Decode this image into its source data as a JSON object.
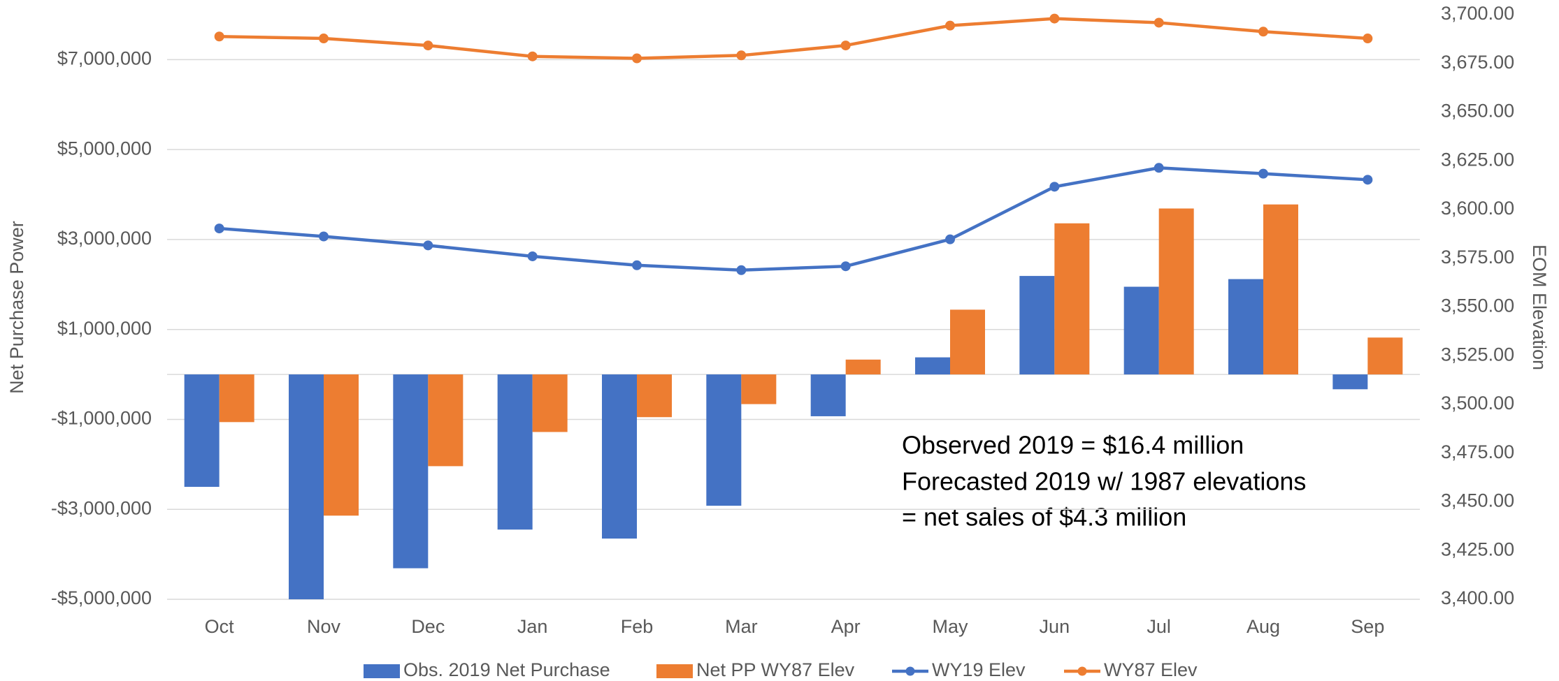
{
  "chart_data": {
    "type": "bar",
    "y_label": "Net Purchase Power",
    "y2_label": "EOM Elevation",
    "categories": [
      "Oct",
      "Nov",
      "Dec",
      "Jan",
      "Feb",
      "Mar",
      "Apr",
      "May",
      "Jun",
      "Jul",
      "Aug",
      "Sep"
    ],
    "series": [
      {
        "name": "Obs. 2019 Net Purchase",
        "type": "bar",
        "color": "#4472c4",
        "values": [
          -2500000,
          -5000000,
          -4310000,
          -3450000,
          -3650000,
          -2920000,
          -930000,
          380000,
          2190000,
          1950000,
          2120000,
          -330000
        ]
      },
      {
        "name": "Net PP WY87 Elev",
        "type": "bar",
        "color": "#ed7d31",
        "values": [
          -1060000,
          -3140000,
          -2040000,
          -1280000,
          -950000,
          -660000,
          330000,
          1440000,
          3360000,
          3690000,
          3780000,
          820000
        ]
      },
      {
        "name": "WY19 Elev",
        "type": "line",
        "axis": "y2",
        "color": "#4472c4",
        "values": [
          3590.3,
          3586.2,
          3581.6,
          3576.0,
          3571.4,
          3568.9,
          3570.9,
          3584.7,
          3611.7,
          3621.4,
          3618.4,
          3615.3
        ]
      },
      {
        "name": "WY87 Elev",
        "type": "line",
        "axis": "y2",
        "color": "#ed7d31",
        "values": [
          3688.8,
          3687.8,
          3684.2,
          3678.6,
          3677.6,
          3679.1,
          3684.2,
          3694.4,
          3698.0,
          3695.9,
          3691.3,
          3687.8
        ]
      }
    ],
    "ylim": [
      -5000000,
      8000000
    ],
    "yticks": [
      {
        "value": -5000000,
        "label": "-$5,000,000"
      },
      {
        "value": -3000000,
        "label": "-$3,000,000"
      },
      {
        "value": -1000000,
        "label": "-$1,000,000"
      },
      {
        "value": 1000000,
        "label": "$1,000,000"
      },
      {
        "value": 3000000,
        "label": "$3,000,000"
      },
      {
        "value": 5000000,
        "label": "$5,000,000"
      },
      {
        "value": 7000000,
        "label": "$7,000,000"
      }
    ],
    "y2lim": [
      3400,
      3700
    ],
    "y2ticks": [
      {
        "value": 3400,
        "label": "3,400.00"
      },
      {
        "value": 3425,
        "label": "3,425.00"
      },
      {
        "value": 3450,
        "label": "3,450.00"
      },
      {
        "value": 3475,
        "label": "3,475.00"
      },
      {
        "value": 3500,
        "label": "3,500.00"
      },
      {
        "value": 3525,
        "label": "3,525.00"
      },
      {
        "value": 3550,
        "label": "3,550.00"
      },
      {
        "value": 3575,
        "label": "3,575.00"
      },
      {
        "value": 3600,
        "label": "3,600.00"
      },
      {
        "value": 3625,
        "label": "3,625.00"
      },
      {
        "value": 3650,
        "label": "3,650.00"
      },
      {
        "value": 3675,
        "label": "3,675.00"
      },
      {
        "value": 3700,
        "label": "3,700.00"
      }
    ],
    "grid": true,
    "legend": "bottom",
    "annotation": [
      "Observed 2019 = $16.4 million",
      "Forecasted 2019 w/ 1987 elevations",
      "= net sales of $4.3 million"
    ]
  }
}
